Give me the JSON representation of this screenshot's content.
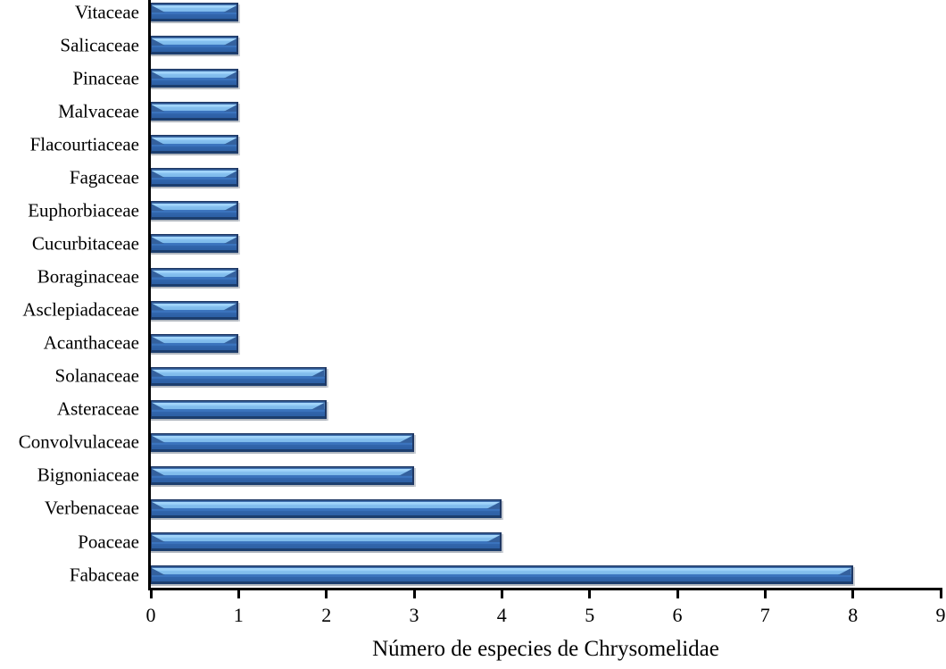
{
  "figure": {
    "background_color": "#ffffff",
    "text_color": "#000000"
  },
  "chart_data": {
    "type": "bar",
    "orientation": "horizontal",
    "title": "",
    "xlabel": "Número de especies de Chrysomelidae",
    "ylabel": "",
    "xlim": [
      0,
      9
    ],
    "x_ticks": [
      "0",
      "1",
      "2",
      "3",
      "4",
      "5",
      "6",
      "7",
      "8",
      "9"
    ],
    "grid": false,
    "legend": null,
    "categories": [
      "Vitaceae",
      "Salicaceae",
      "Pinaceae",
      "Malvaceae",
      "Flacourtiaceae",
      "Fagaceae",
      "Euphorbiaceae",
      "Cucurbitaceae",
      "Boraginaceae",
      "Asclepiadaceae",
      "Acanthaceae",
      "Solanaceae",
      "Asteraceae",
      "Convolvulaceae",
      "Bignoniaceae",
      "Verbenaceae",
      "Poaceae",
      "Fabaceae"
    ],
    "values": [
      1,
      1,
      1,
      1,
      1,
      1,
      1,
      1,
      1,
      1,
      1,
      2,
      2,
      3,
      3,
      4,
      4,
      8
    ],
    "bar_style": {
      "body_color": "#3a72bb",
      "body_dark": "#2d5fa4",
      "highlight_color": "#96cdf7",
      "edge_color": "#1f3864",
      "shadow_color": "#b3b9c1"
    }
  }
}
